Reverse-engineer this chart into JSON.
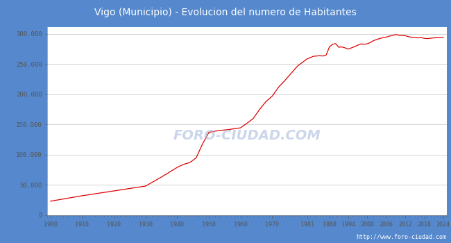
{
  "title": "Vigo (Municipio) - Evolucion del numero de Habitantes",
  "title_bg_color": "#5588cc",
  "title_text_color": "#ffffff",
  "plot_bg_color": "#ffffff",
  "grid_color": "#cccccc",
  "outer_bg_color": "#5588cc",
  "line_color_red": "#dd0000",
  "watermark": "FORO-CIUDAD.COM",
  "url": "http://www.foro-ciudad.com",
  "ylim": [
    0,
    312000
  ],
  "yticks": [
    0,
    50000,
    100000,
    150000,
    200000,
    250000,
    300000
  ],
  "ytick_labels": [
    "0",
    "50.000",
    "100.000",
    "150.000",
    "200.000",
    "250.000",
    "300.000"
  ],
  "xticks": [
    1900,
    1910,
    1920,
    1930,
    1940,
    1950,
    1960,
    1970,
    1981,
    1988,
    1994,
    2000,
    2006,
    2012,
    2018,
    2024
  ],
  "data_years": [
    1900,
    1905,
    1910,
    1915,
    1920,
    1925,
    1930,
    1935,
    1940,
    1942,
    1944,
    1946,
    1948,
    1950,
    1952,
    1954,
    1956,
    1958,
    1960,
    1962,
    1964,
    1966,
    1968,
    1970,
    1972,
    1974,
    1976,
    1978,
    1981,
    1983,
    1985,
    1986,
    1987,
    1988,
    1989,
    1990,
    1991,
    1992,
    1993,
    1994,
    1995,
    1996,
    1997,
    1998,
    1999,
    2000,
    2001,
    2002,
    2003,
    2004,
    2005,
    2006,
    2007,
    2008,
    2009,
    2010,
    2011,
    2012,
    2013,
    2014,
    2015,
    2016,
    2017,
    2018,
    2019,
    2020,
    2021,
    2022,
    2023,
    2024
  ],
  "data_values": [
    23000,
    27500,
    32000,
    36000,
    40000,
    44000,
    48000,
    63000,
    79000,
    84000,
    87000,
    95000,
    118000,
    137000,
    139000,
    140500,
    141500,
    143000,
    144500,
    152000,
    160000,
    175000,
    188000,
    197000,
    212000,
    223000,
    235000,
    247000,
    258724,
    263000,
    264000,
    263500,
    265000,
    278000,
    283000,
    284000,
    278000,
    278500,
    277000,
    275000,
    277000,
    279000,
    281500,
    283500,
    283000,
    283669,
    286000,
    289000,
    291000,
    292500,
    294000,
    294772,
    296500,
    297500,
    299000,
    298000,
    297500,
    297241,
    295500,
    294500,
    294200,
    293500,
    294000,
    292817,
    292300,
    293000,
    293500,
    294000,
    294000,
    294098
  ]
}
